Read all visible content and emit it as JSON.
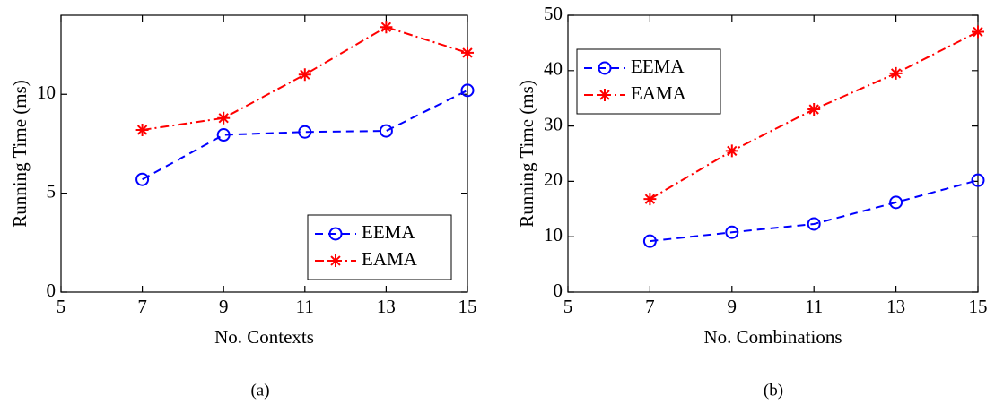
{
  "chart_data": [
    {
      "type": "line",
      "caption": "(a)",
      "xlabel": "No. Contexts",
      "ylabel": "Running Time (ms)",
      "x": [
        7,
        9,
        11,
        13,
        15
      ],
      "xlim": [
        5,
        15
      ],
      "xticks": [
        5,
        7,
        9,
        11,
        13,
        15
      ],
      "ylim": [
        0,
        14
      ],
      "yticks": [
        0,
        5,
        10
      ],
      "legend": "lower right",
      "series": [
        {
          "name": "EEMA",
          "color": "#0000ff",
          "marker": "o",
          "linestyle": "dashed",
          "values": [
            5.7,
            7.95,
            8.1,
            8.15,
            10.2
          ]
        },
        {
          "name": "EAMA",
          "color": "#ff0000",
          "marker": "*",
          "linestyle": "dashdot",
          "values": [
            8.2,
            8.8,
            11.0,
            13.4,
            12.1
          ]
        }
      ]
    },
    {
      "type": "line",
      "caption": "(b)",
      "xlabel": "No. Combinations",
      "ylabel": "Running Time (ms)",
      "x": [
        7,
        9,
        11,
        13,
        15
      ],
      "xlim": [
        5,
        15
      ],
      "xticks": [
        5,
        7,
        9,
        11,
        13,
        15
      ],
      "ylim": [
        0,
        50
      ],
      "yticks": [
        0,
        10,
        20,
        30,
        40,
        50
      ],
      "legend": "upper left",
      "series": [
        {
          "name": "EEMA",
          "color": "#0000ff",
          "marker": "o",
          "linestyle": "dashed",
          "values": [
            9.2,
            10.8,
            12.3,
            16.2,
            20.2
          ]
        },
        {
          "name": "EAMA",
          "color": "#ff0000",
          "marker": "*",
          "linestyle": "dashdot",
          "values": [
            16.8,
            25.5,
            33.0,
            39.5,
            47.0
          ]
        }
      ]
    }
  ]
}
